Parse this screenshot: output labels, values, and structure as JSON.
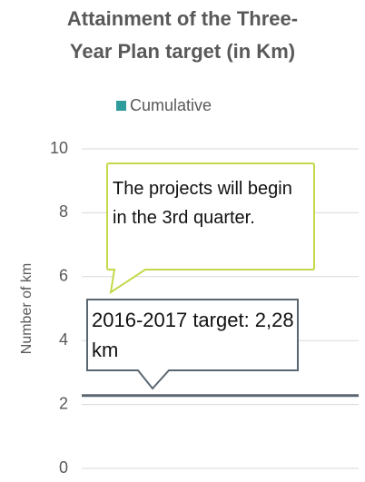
{
  "chart_data": {
    "type": "line",
    "title": [
      "Attainment of the Three-",
      "Year Plan target (in Km)"
    ],
    "y_label": "Number of km",
    "categories": [],
    "series": [
      {
        "name": "Cumulative",
        "color": "#2e9c9c",
        "values": []
      }
    ],
    "ylim": [
      0,
      10
    ],
    "yticks": [
      0,
      2,
      4,
      6,
      8,
      10
    ],
    "grid": true,
    "target": {
      "value": 2.28,
      "color": "#5a6670"
    },
    "annotations": [
      "The projects will begin in the 3rd quarter.",
      "2016-2017 target: 2,28 km"
    ]
  }
}
